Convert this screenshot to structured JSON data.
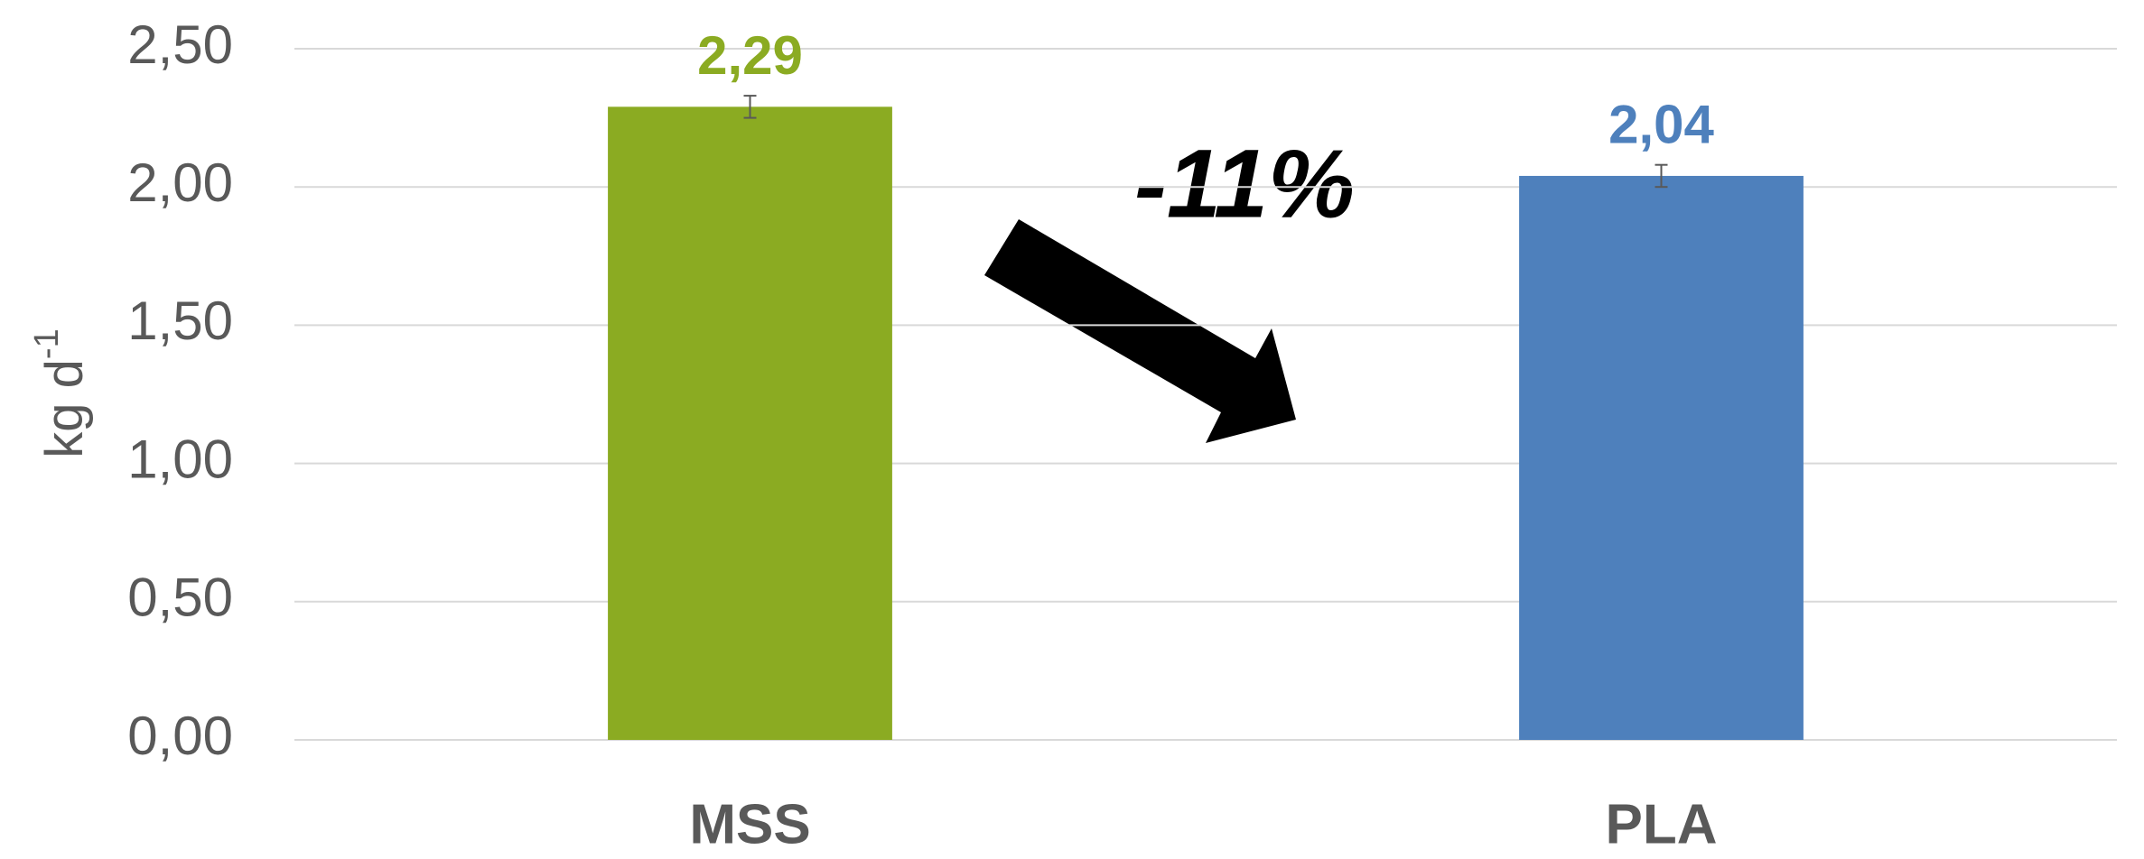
{
  "chart_data": {
    "type": "bar",
    "categories": [
      "MSS",
      "PLA"
    ],
    "values": [
      2.29,
      2.04
    ],
    "value_labels": [
      "2,29",
      "2,04"
    ],
    "errors": [
      0.04,
      0.04
    ],
    "colors": [
      "#8bab22",
      "#4e80bc"
    ],
    "ylabel": "kg d",
    "ylabel_sup": "-1",
    "annotations": [
      "-11%"
    ],
    "ylim": [
      0,
      2.5
    ],
    "yticks": [
      {
        "value": 0,
        "label": "0,00"
      },
      {
        "value": 0.5,
        "label": "0,50"
      },
      {
        "value": 1,
        "label": "1,00"
      },
      {
        "value": 1.5,
        "label": "1,50"
      },
      {
        "value": 2,
        "label": "2,00"
      },
      {
        "value": 2.5,
        "label": "2,50"
      }
    ],
    "grid": true
  }
}
